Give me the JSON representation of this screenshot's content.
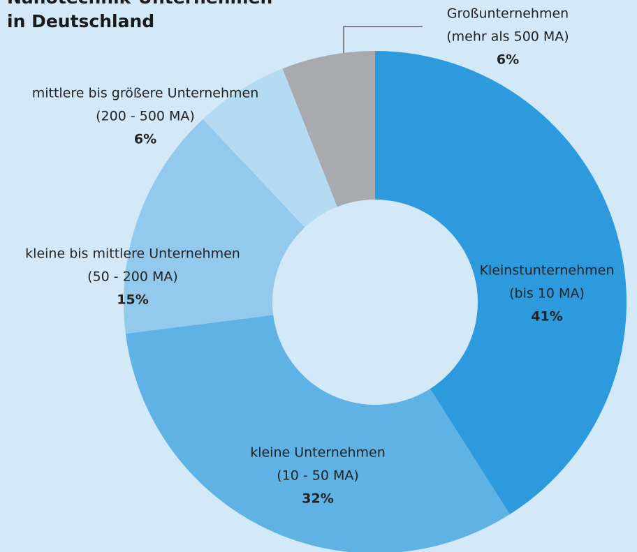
{
  "chart_data": {
    "type": "donut",
    "title": "Nanotechnik-Unternehmen in Deutschland",
    "categories": [
      "Kleinstunternehmen",
      "kleine Unternehmen",
      "kleine bis mittlere Unternehmen",
      "mittlere bis größere Unternehmen",
      "Großunternehmen"
    ],
    "sublabels": [
      "(bis 10 MA)",
      "(10 - 50 MA)",
      "(50 - 200 MA)",
      "(200 - 500 MA)",
      "(mehr als 500 MA)"
    ],
    "values": [
      41,
      32,
      15,
      6,
      6
    ],
    "value_labels": [
      "41%",
      "32%",
      "15%",
      "6%",
      "6%"
    ],
    "colors": [
      "#2d9ade",
      "#5fb2e4",
      "#93c9ec",
      "#b4dbf2",
      "#a8aaad"
    ]
  }
}
